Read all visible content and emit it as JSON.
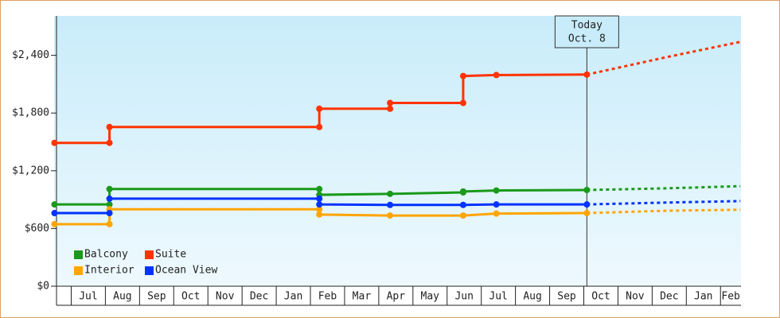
{
  "chart_data": {
    "type": "line",
    "categories": [
      "Jul",
      "Aug",
      "Sep",
      "Oct",
      "Nov",
      "Dec",
      "Jan",
      "Feb",
      "Mar",
      "Apr",
      "May",
      "Jun",
      "Jul",
      "Aug",
      "Sep",
      "Oct",
      "Nov",
      "Dec",
      "Jan",
      "Feb"
    ],
    "xlim": [
      -0.5,
      19.6
    ],
    "ylim": [
      0,
      2810
    ],
    "yticks": [
      {
        "value": 0,
        "label": "$0"
      },
      {
        "value": 600,
        "label": "$600"
      },
      {
        "value": 1200,
        "label": "$1,200"
      },
      {
        "value": 1800,
        "label": "$1,800"
      },
      {
        "value": 2400,
        "label": "$2,400"
      }
    ],
    "today": {
      "x": 15.09,
      "label": [
        "Today",
        "Oct. 8"
      ]
    },
    "series": [
      {
        "name": "Balcony",
        "color": "#1a9a1a",
        "x": [
          -0.49,
          1.12,
          1.12,
          7.26,
          7.26,
          9.33,
          11.47,
          11.47,
          12.44,
          15.09
        ],
        "values": [
          850,
          850,
          1010,
          1010,
          950,
          960,
          975,
          985,
          995,
          1000
        ],
        "projected_x": [
          15.09,
          17.47,
          19.58
        ],
        "projected_values": [
          1000,
          1018,
          1040
        ]
      },
      {
        "name": "Suite",
        "color": "#ff3300",
        "x": [
          -0.49,
          1.12,
          1.12,
          7.26,
          7.26,
          9.33,
          9.33,
          11.47,
          11.47,
          12.44,
          15.09
        ],
        "values": [
          1490,
          1490,
          1655,
          1655,
          1845,
          1845,
          1905,
          1905,
          2185,
          2195,
          2200
        ],
        "projected_x": [
          15.09,
          17.47,
          19.58
        ],
        "projected_values": [
          2200,
          2385,
          2540
        ]
      },
      {
        "name": "Interior",
        "color": "#ffa500",
        "x": [
          -0.49,
          1.12,
          1.12,
          7.26,
          7.26,
          9.33,
          11.47,
          12.44,
          15.09
        ],
        "values": [
          645,
          645,
          800,
          800,
          745,
          735,
          735,
          755,
          760
        ],
        "projected_x": [
          15.09,
          17.47,
          19.58
        ],
        "projected_values": [
          760,
          785,
          795
        ]
      },
      {
        "name": "Ocean View",
        "color": "#0033ff",
        "x": [
          -0.49,
          1.12,
          1.12,
          7.26,
          7.26,
          9.33,
          11.47,
          12.44,
          15.09
        ],
        "values": [
          760,
          760,
          910,
          910,
          850,
          845,
          845,
          850,
          850
        ],
        "projected_x": [
          15.09,
          17.47,
          19.58
        ],
        "projected_values": [
          850,
          870,
          885
        ]
      }
    ]
  }
}
